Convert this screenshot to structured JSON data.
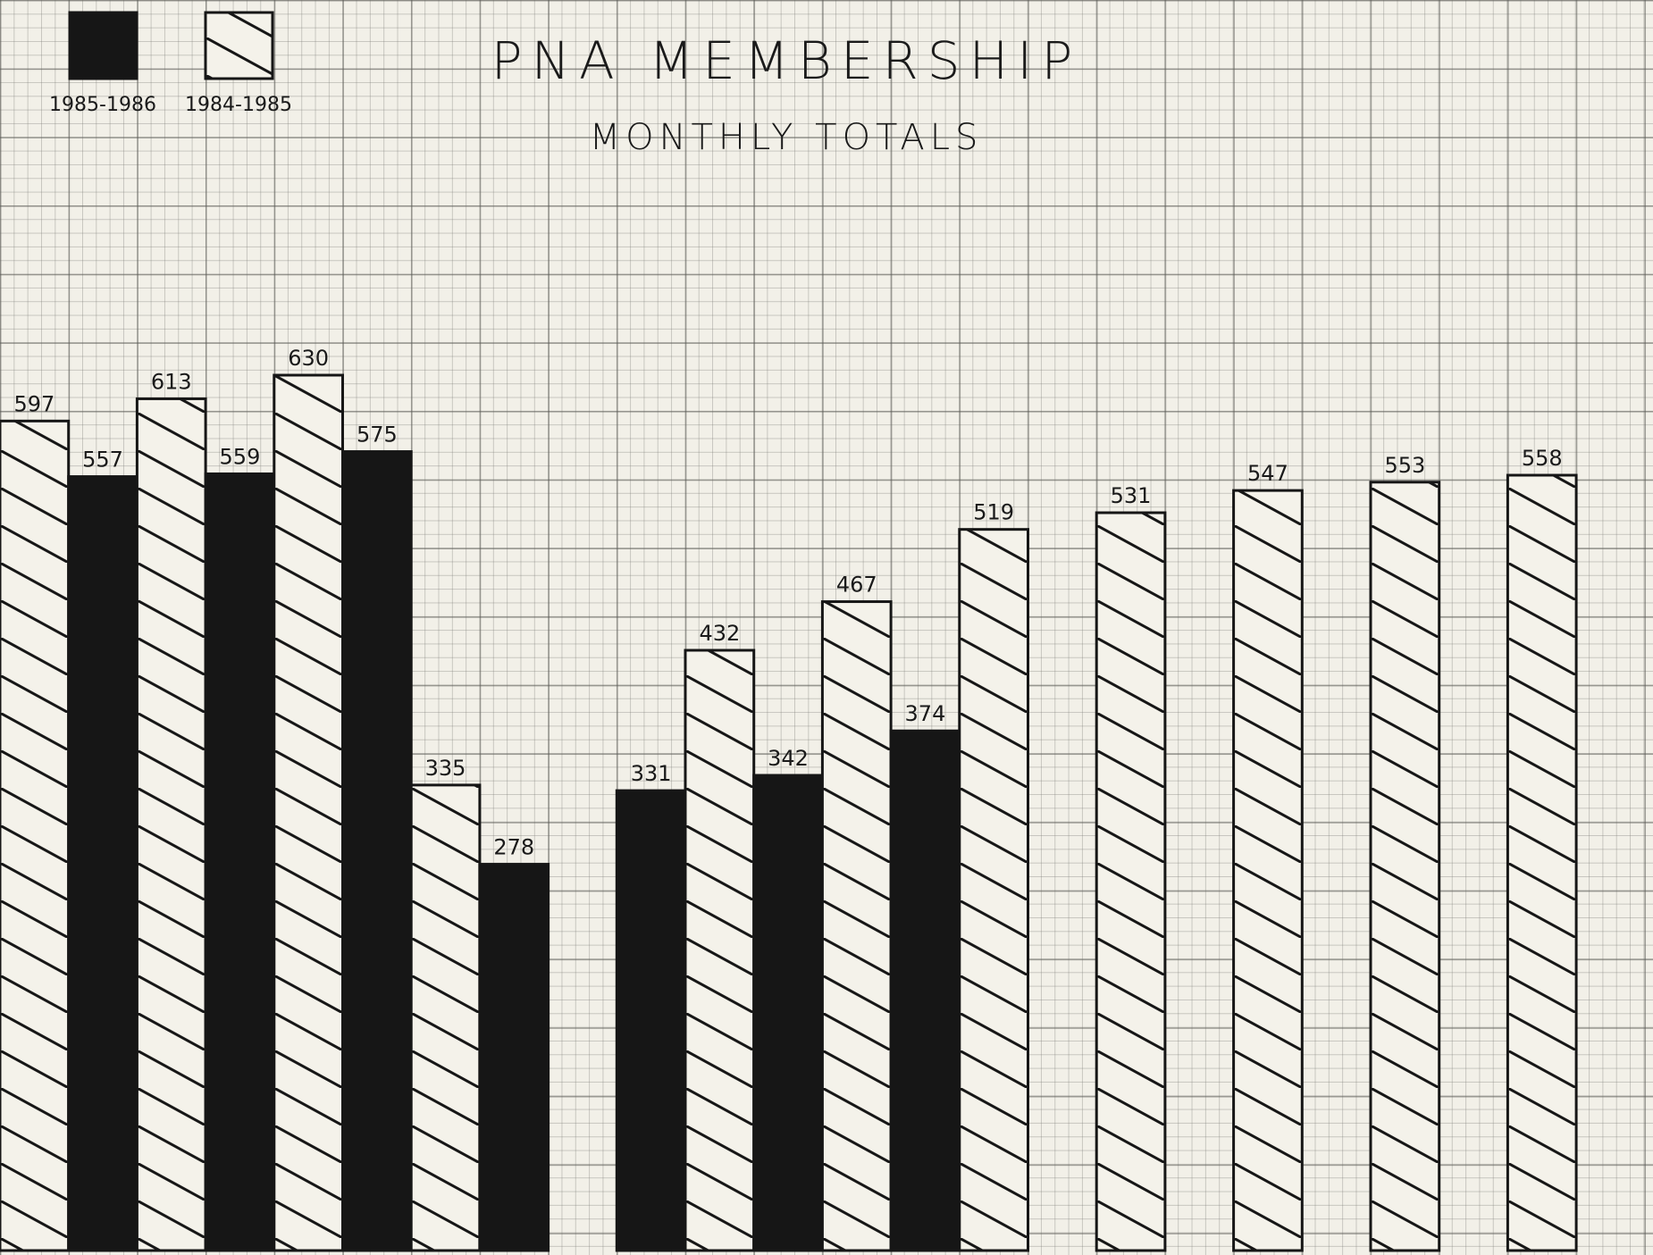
{
  "chart_data": {
    "type": "bar",
    "title": "PNA MEMBERSHIP",
    "subtitle": "MONTHLY TOTALS",
    "categories": [
      null,
      null,
      null,
      null,
      null,
      null,
      null,
      null,
      null,
      null,
      null,
      null
    ],
    "series": [
      {
        "name": "1985-1986",
        "color": "#161616",
        "hatch": false,
        "values": [
          557,
          559,
          575,
          278,
          331,
          342,
          374,
          null,
          null,
          null,
          null,
          null
        ]
      },
      {
        "name": "1984-1985",
        "color": "#161616",
        "hatch": true,
        "values": [
          597,
          613,
          630,
          335,
          null,
          432,
          467,
          519,
          531,
          547,
          553,
          558
        ]
      }
    ],
    "ylim": [
      0,
      900
    ],
    "legend": "top-left"
  }
}
